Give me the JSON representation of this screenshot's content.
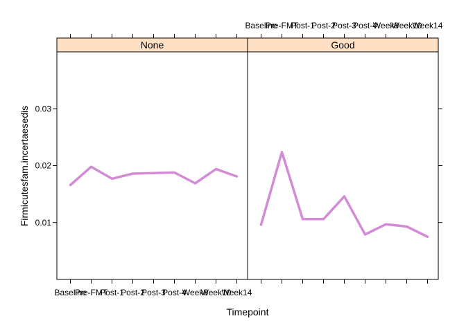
{
  "chart_data": {
    "type": "line",
    "xlabel": "Timepoint",
    "ylabel": "Firmicutesfam.incertaesedis",
    "categories": [
      "Baseline",
      "Pre-FMT",
      "Post-1",
      "Post-2",
      "Post-3",
      "Post-4",
      "Week8",
      "Week10",
      "Week14"
    ],
    "yticks": [
      "0.01",
      "0.02",
      "0.03"
    ],
    "ylim": [
      0.0,
      0.04
    ],
    "line_color": "#D38BD6",
    "panels": [
      {
        "name": "None",
        "strip_color": "#FFE0C4",
        "series": [
          {
            "x": "Baseline",
            "y": 0.0166
          },
          {
            "x": "Pre-FMT",
            "y": 0.0198
          },
          {
            "x": "Post-1",
            "y": 0.0177
          },
          {
            "x": "Post-2",
            "y": 0.0186
          },
          {
            "x": "Post-4",
            "y": 0.0188
          },
          {
            "x": "Week8",
            "y": 0.0169
          },
          {
            "x": "Week10",
            "y": 0.0194
          },
          {
            "x": "Week14",
            "y": 0.0181
          }
        ]
      },
      {
        "name": "Good",
        "strip_color": "#FFE0C4",
        "series": [
          {
            "x": "Baseline",
            "y": 0.0096
          },
          {
            "x": "Pre-FMT",
            "y": 0.0224
          },
          {
            "x": "Post-1",
            "y": 0.0106
          },
          {
            "x": "Post-2",
            "y": 0.0106
          },
          {
            "x": "Post-3",
            "y": 0.0146
          },
          {
            "x": "Post-4",
            "y": 0.0079
          },
          {
            "x": "Week8",
            "y": 0.0097
          },
          {
            "x": "Week10",
            "y": 0.0093
          },
          {
            "x": "Week14",
            "y": 0.0075
          }
        ]
      }
    ]
  }
}
